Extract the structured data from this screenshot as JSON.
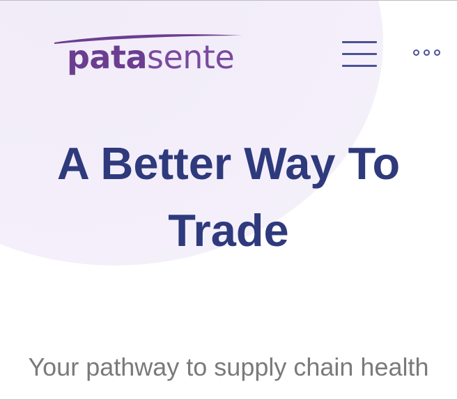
{
  "header": {
    "logo": {
      "bold_part": "pata",
      "light_part": "sente"
    },
    "menu_icon": "hamburger-menu-icon",
    "more_icon": "more-options-icon"
  },
  "hero": {
    "title": "A Better Way To Trade",
    "subtitle": "Your pathway to supply chain health"
  },
  "colors": {
    "brand_purple": "#6b3d8f",
    "navy": "#2e3a7c",
    "icon": "#4a5296",
    "subtitle_gray": "#7a7a7a",
    "background_blob": "#f3eef9"
  }
}
